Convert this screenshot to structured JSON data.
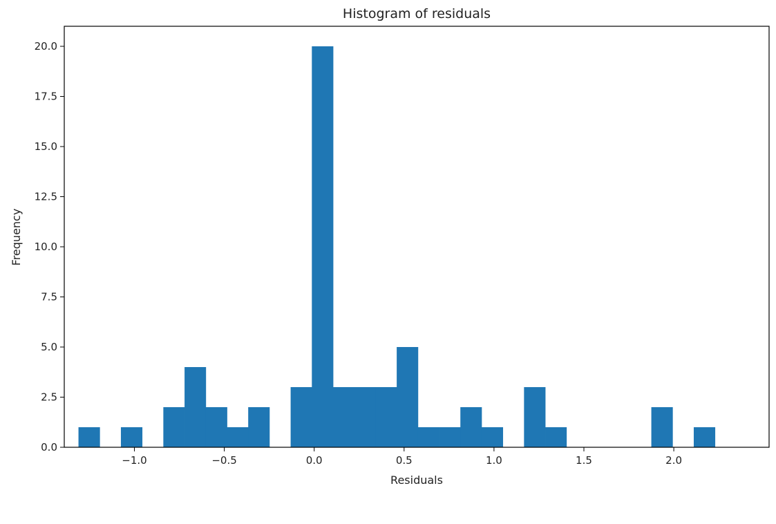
{
  "chart_data": {
    "type": "bar",
    "title": "Histogram of residuals",
    "xlabel": "Residuals",
    "ylabel": "Frequency",
    "bar_color": "#1f77b4",
    "xlim": [
      -1.39,
      2.53
    ],
    "ylim": [
      0,
      21
    ],
    "bins": [
      {
        "x0": -1.311,
        "x1": -1.193,
        "value": 1
      },
      {
        "x0": -1.193,
        "x1": -1.075,
        "value": 0
      },
      {
        "x0": -1.075,
        "x1": -0.957,
        "value": 1
      },
      {
        "x0": -0.957,
        "x1": -0.839,
        "value": 0
      },
      {
        "x0": -0.839,
        "x1": -0.721,
        "value": 2
      },
      {
        "x0": -0.721,
        "x1": -0.603,
        "value": 4
      },
      {
        "x0": -0.603,
        "x1": -0.485,
        "value": 2
      },
      {
        "x0": -0.485,
        "x1": -0.367,
        "value": 1
      },
      {
        "x0": -0.367,
        "x1": -0.249,
        "value": 2
      },
      {
        "x0": -0.249,
        "x1": -0.131,
        "value": 0
      },
      {
        "x0": -0.131,
        "x1": -0.013,
        "value": 3
      },
      {
        "x0": -0.013,
        "x1": 0.105,
        "value": 20
      },
      {
        "x0": 0.105,
        "x1": 0.223,
        "value": 3
      },
      {
        "x0": 0.223,
        "x1": 0.341,
        "value": 3
      },
      {
        "x0": 0.341,
        "x1": 0.459,
        "value": 3
      },
      {
        "x0": 0.459,
        "x1": 0.577,
        "value": 5
      },
      {
        "x0": 0.577,
        "x1": 0.695,
        "value": 1
      },
      {
        "x0": 0.695,
        "x1": 0.813,
        "value": 1
      },
      {
        "x0": 0.813,
        "x1": 0.931,
        "value": 2
      },
      {
        "x0": 0.931,
        "x1": 1.049,
        "value": 1
      },
      {
        "x0": 1.049,
        "x1": 1.167,
        "value": 0
      },
      {
        "x0": 1.167,
        "x1": 1.285,
        "value": 3
      },
      {
        "x0": 1.285,
        "x1": 1.403,
        "value": 1
      },
      {
        "x0": 1.403,
        "x1": 1.521,
        "value": 0
      },
      {
        "x0": 1.521,
        "x1": 1.639,
        "value": 0
      },
      {
        "x0": 1.639,
        "x1": 1.757,
        "value": 0
      },
      {
        "x0": 1.757,
        "x1": 1.875,
        "value": 0
      },
      {
        "x0": 1.875,
        "x1": 1.993,
        "value": 2
      },
      {
        "x0": 1.993,
        "x1": 2.111,
        "value": 0
      },
      {
        "x0": 2.111,
        "x1": 2.229,
        "value": 1
      }
    ],
    "xticks": [
      {
        "value": -1.0,
        "label": "−1.0"
      },
      {
        "value": -0.5,
        "label": "−0.5"
      },
      {
        "value": 0.0,
        "label": "0.0"
      },
      {
        "value": 0.5,
        "label": "0.5"
      },
      {
        "value": 1.0,
        "label": "1.0"
      },
      {
        "value": 1.5,
        "label": "1.5"
      },
      {
        "value": 2.0,
        "label": "2.0"
      }
    ],
    "yticks": [
      {
        "value": 0.0,
        "label": "0.0"
      },
      {
        "value": 2.5,
        "label": "2.5"
      },
      {
        "value": 5.0,
        "label": "5.0"
      },
      {
        "value": 7.5,
        "label": "7.5"
      },
      {
        "value": 10.0,
        "label": "10.0"
      },
      {
        "value": 12.5,
        "label": "12.5"
      },
      {
        "value": 15.0,
        "label": "15.0"
      },
      {
        "value": 17.5,
        "label": "17.5"
      },
      {
        "value": 20.0,
        "label": "20.0"
      }
    ],
    "grid": false,
    "legend": "none"
  }
}
